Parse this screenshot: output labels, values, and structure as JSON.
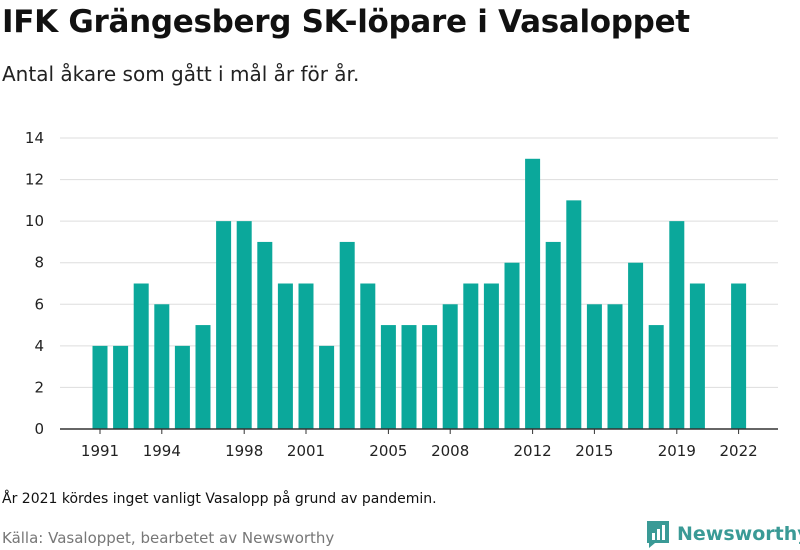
{
  "title": "IFK Grängesberg SK-löpare i Vasaloppet",
  "subtitle": "Antal åkare som gått i mål år för år.",
  "note": "År 2021 kördes inget vanligt Vasalopp på grund av pandemin.",
  "source": "Källa: Vasaloppet, bearbetet av Newsworthy",
  "brand": {
    "name": "Newsworthy",
    "icon": "newsworthy-logo-icon",
    "color": "#3a9a96"
  },
  "colors": {
    "bar": "#0ba89b",
    "grid": "#dddddd",
    "axis": "#333333"
  },
  "chart_data": {
    "type": "bar",
    "title": "",
    "xlabel": "",
    "ylabel": "",
    "categories": [
      1991,
      1992,
      1993,
      1994,
      1995,
      1996,
      1997,
      1998,
      1999,
      2000,
      2001,
      2002,
      2003,
      2004,
      2005,
      2006,
      2007,
      2008,
      2009,
      2010,
      2011,
      2012,
      2013,
      2014,
      2015,
      2016,
      2017,
      2018,
      2019,
      2020,
      2021,
      2022
    ],
    "values": [
      4,
      4,
      7,
      6,
      4,
      5,
      10,
      10,
      9,
      7,
      7,
      4,
      9,
      7,
      5,
      5,
      5,
      6,
      7,
      7,
      8,
      13,
      9,
      11,
      6,
      6,
      8,
      5,
      10,
      7,
      null,
      7
    ],
    "ylim": [
      0,
      14
    ],
    "yticks": [
      0,
      2,
      4,
      6,
      8,
      10,
      12,
      14
    ],
    "xtick_labels": [
      "1991",
      "1994",
      "1998",
      "2001",
      "2005",
      "2008",
      "2012",
      "2015",
      "2019",
      "2022"
    ],
    "grid": true
  }
}
